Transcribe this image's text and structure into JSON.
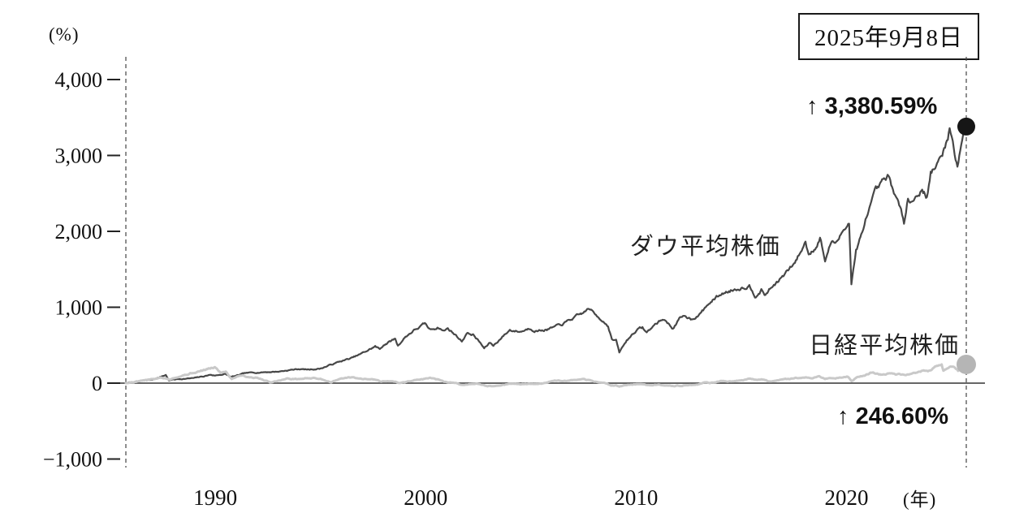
{
  "date_box": {
    "label": "2025年9月8日"
  },
  "chart_data": {
    "type": "line",
    "title": "",
    "ylabel": "(%)",
    "xlabel_unit": "(年)",
    "x_range": [
      1985.75,
      2025.69
    ],
    "y_range": [
      -1000,
      4000
    ],
    "grid": false,
    "legend_position": "inline-annotations",
    "y_ticks": [
      {
        "value": 4000,
        "label": "4,000"
      },
      {
        "value": 3000,
        "label": "3,000"
      },
      {
        "value": 2000,
        "label": "2,000"
      },
      {
        "value": 1000,
        "label": "1,000"
      },
      {
        "value": 0,
        "label": "0"
      },
      {
        "value": -1000,
        "label": "−1,000"
      }
    ],
    "x_ticks": [
      {
        "value": 1990,
        "label": "1990"
      },
      {
        "value": 2000,
        "label": "2000"
      },
      {
        "value": 2010,
        "label": "2010"
      },
      {
        "value": 2020,
        "label": "2020"
      }
    ],
    "zero_line": true,
    "dashed_vlines": [
      1985.75,
      2025.69
    ],
    "series": [
      {
        "id": "dow",
        "name": "ダウ平均株価",
        "color": "#474747",
        "dot_color": "#161616",
        "dot_radius": 11,
        "stroke_width": 2.2,
        "end_value_pct": 3380.59,
        "points": [
          [
            1985.75,
            0
          ],
          [
            1986,
            10
          ],
          [
            1986.3,
            22
          ],
          [
            1986.6,
            35
          ],
          [
            1987,
            45
          ],
          [
            1987.3,
            75
          ],
          [
            1987.65,
            108
          ],
          [
            1987.8,
            35
          ],
          [
            1988,
            48
          ],
          [
            1988.5,
            58
          ],
          [
            1989,
            66
          ],
          [
            1989.5,
            92
          ],
          [
            1989.78,
            111
          ],
          [
            1990,
            100
          ],
          [
            1990.45,
            122
          ],
          [
            1990.75,
            81
          ],
          [
            1991,
            95
          ],
          [
            1991.4,
            128
          ],
          [
            1992,
            142
          ],
          [
            1992.5,
            148
          ],
          [
            1993,
            153
          ],
          [
            1993.5,
            172
          ],
          [
            1994,
            187
          ],
          [
            1994.4,
            178
          ],
          [
            1995,
            193
          ],
          [
            1995.5,
            243
          ],
          [
            1996,
            291
          ],
          [
            1996.5,
            330
          ],
          [
            1997,
            393
          ],
          [
            1997.6,
            483
          ],
          [
            1997.82,
            445
          ],
          [
            1998,
            505
          ],
          [
            1998.55,
            585
          ],
          [
            1998.68,
            495
          ],
          [
            1999,
            602
          ],
          [
            1999.4,
            690
          ],
          [
            1999.96,
            780
          ],
          [
            2000.2,
            700
          ],
          [
            2000.6,
            740
          ],
          [
            2000.85,
            690
          ],
          [
            2001.05,
            720
          ],
          [
            2001.3,
            665
          ],
          [
            2001.72,
            555
          ],
          [
            2001.95,
            660
          ],
          [
            2002.25,
            640
          ],
          [
            2002.56,
            540
          ],
          [
            2002.78,
            457
          ],
          [
            2003.05,
            530
          ],
          [
            2003.22,
            495
          ],
          [
            2003.6,
            600
          ],
          [
            2004,
            700
          ],
          [
            2004.5,
            680
          ],
          [
            2004.95,
            725
          ],
          [
            2005.3,
            695
          ],
          [
            2005.8,
            710
          ],
          [
            2006.4,
            760
          ],
          [
            2007,
            853
          ],
          [
            2007.4,
            905
          ],
          [
            2007.77,
            984
          ],
          [
            2008.05,
            900
          ],
          [
            2008.4,
            835
          ],
          [
            2008.67,
            760
          ],
          [
            2008.85,
            580
          ],
          [
            2009.05,
            560
          ],
          [
            2009.2,
            401
          ],
          [
            2009.55,
            560
          ],
          [
            2010,
            698
          ],
          [
            2010.3,
            735
          ],
          [
            2010.5,
            665
          ],
          [
            2010.95,
            786
          ],
          [
            2011.3,
            845
          ],
          [
            2011.62,
            760
          ],
          [
            2011.75,
            725
          ],
          [
            2012.05,
            840
          ],
          [
            2012.35,
            880
          ],
          [
            2012.6,
            850
          ],
          [
            2013,
            905
          ],
          [
            2013.5,
            1060
          ],
          [
            2014,
            1168
          ],
          [
            2014.5,
            1225
          ],
          [
            2014.95,
            1263
          ],
          [
            2015.38,
            1290
          ],
          [
            2015.65,
            1165
          ],
          [
            2015.95,
            1233
          ],
          [
            2016.1,
            1160
          ],
          [
            2016.5,
            1280
          ],
          [
            2017,
            1412
          ],
          [
            2017.5,
            1560
          ],
          [
            2018.05,
            1855
          ],
          [
            2018.2,
            1700
          ],
          [
            2018.55,
            1810
          ],
          [
            2018.74,
            1925
          ],
          [
            2018.98,
            1620
          ],
          [
            2019.3,
            1880
          ],
          [
            2019.55,
            1840
          ],
          [
            2019.95,
            2083
          ],
          [
            2020.12,
            2130
          ],
          [
            2020.23,
            1322
          ],
          [
            2020.45,
            1750
          ],
          [
            2020.7,
            1930
          ],
          [
            2020.85,
            2060
          ],
          [
            2021,
            2241
          ],
          [
            2021.35,
            2480
          ],
          [
            2021.65,
            2590
          ],
          [
            2021.95,
            2695
          ],
          [
            2022.25,
            2520
          ],
          [
            2022.5,
            2330
          ],
          [
            2022.73,
            2098
          ],
          [
            2022.92,
            2480
          ],
          [
            2023.1,
            2400
          ],
          [
            2023.55,
            2560
          ],
          [
            2023.82,
            2470
          ],
          [
            2024,
            2783
          ],
          [
            2024.3,
            2870
          ],
          [
            2024.55,
            2990
          ],
          [
            2024.9,
            3345
          ],
          [
            2025.05,
            3170
          ],
          [
            2025.27,
            2860
          ],
          [
            2025.45,
            3180
          ],
          [
            2025.55,
            3320
          ],
          [
            2025.62,
            3420
          ],
          [
            2025.66,
            3300
          ],
          [
            2025.69,
            3380.59
          ]
        ]
      },
      {
        "id": "nikkei",
        "name": "日経平均株価",
        "color": "#c9c9c9",
        "dot_color": "#b5b5b5",
        "dot_radius": 12,
        "stroke_width": 3,
        "end_value_pct": 246.6,
        "points": [
          [
            1985.75,
            0
          ],
          [
            1986,
            6
          ],
          [
            1986.4,
            32
          ],
          [
            1987,
            49
          ],
          [
            1987.4,
            72
          ],
          [
            1987.8,
            52
          ],
          [
            1988,
            71
          ],
          [
            1988.5,
            108
          ],
          [
            1989,
            140
          ],
          [
            1989.5,
            172
          ],
          [
            1989.98,
            209
          ],
          [
            1990.25,
            140
          ],
          [
            1990.5,
            158
          ],
          [
            1990.78,
            60
          ],
          [
            1991,
            90
          ],
          [
            1991.25,
            108
          ],
          [
            1991.6,
            82
          ],
          [
            1992,
            70
          ],
          [
            1992.6,
            14
          ],
          [
            1993,
            34
          ],
          [
            1993.4,
            58
          ],
          [
            1994,
            54
          ],
          [
            1994.5,
            68
          ],
          [
            1995,
            57
          ],
          [
            1995.5,
            15
          ],
          [
            1996,
            58
          ],
          [
            1996.45,
            76
          ],
          [
            1997,
            54
          ],
          [
            1997.45,
            62
          ],
          [
            1997.9,
            22
          ],
          [
            1998.3,
            30
          ],
          [
            1998.75,
            3
          ],
          [
            1999,
            10
          ],
          [
            1999.5,
            42
          ],
          [
            2000.25,
            64
          ],
          [
            2000.6,
            38
          ],
          [
            2001,
            10
          ],
          [
            2001.5,
            -6
          ],
          [
            2001.74,
            -22
          ],
          [
            2002,
            -16
          ],
          [
            2002.4,
            -8
          ],
          [
            2002.85,
            -32
          ],
          [
            2003.3,
            -40
          ],
          [
            2003.7,
            -16
          ],
          [
            2004.1,
            -12
          ],
          [
            2004.6,
            -14
          ],
          [
            2005,
            -9
          ],
          [
            2005.5,
            -6
          ],
          [
            2006,
            28
          ],
          [
            2006.3,
            36
          ],
          [
            2006.55,
            22
          ],
          [
            2007,
            37
          ],
          [
            2007.5,
            45
          ],
          [
            2008,
            20
          ],
          [
            2008.5,
            3
          ],
          [
            2008.82,
            -35
          ],
          [
            2009.05,
            -30
          ],
          [
            2009.2,
            -44
          ],
          [
            2009.6,
            -22
          ],
          [
            2010,
            -16
          ],
          [
            2010.5,
            -26
          ],
          [
            2010.9,
            -19
          ],
          [
            2011.2,
            -25
          ],
          [
            2011.6,
            -28
          ],
          [
            2012,
            -33
          ],
          [
            2012.5,
            -31
          ],
          [
            2012.95,
            -17
          ],
          [
            2013.38,
            14
          ],
          [
            2013.5,
            3
          ],
          [
            2014,
            26
          ],
          [
            2014.5,
            22
          ],
          [
            2015,
            39
          ],
          [
            2015.45,
            62
          ],
          [
            2015.7,
            45
          ],
          [
            2015.95,
            51
          ],
          [
            2016.3,
            28
          ],
          [
            2016.55,
            32
          ],
          [
            2017,
            52
          ],
          [
            2017.5,
            61
          ],
          [
            2018.02,
            83
          ],
          [
            2018.25,
            68
          ],
          [
            2018.7,
            85
          ],
          [
            2018.98,
            57
          ],
          [
            2019.3,
            68
          ],
          [
            2019.7,
            76
          ],
          [
            2020.05,
            88
          ],
          [
            2020.24,
            32
          ],
          [
            2020.5,
            76
          ],
          [
            2020.8,
            92
          ],
          [
            2021,
            118
          ],
          [
            2021.12,
            135
          ],
          [
            2021.5,
            124
          ],
          [
            2021.72,
            112
          ],
          [
            2022,
            128
          ],
          [
            2022.3,
            114
          ],
          [
            2022.6,
            108
          ],
          [
            2023,
            107
          ],
          [
            2023.35,
            132
          ],
          [
            2023.6,
            162
          ],
          [
            2024,
            166
          ],
          [
            2024.2,
            212
          ],
          [
            2024.52,
            234
          ],
          [
            2024.6,
            150
          ],
          [
            2024.85,
            202
          ],
          [
            2025,
            217
          ],
          [
            2025.15,
            208
          ],
          [
            2025.3,
            168
          ],
          [
            2025.5,
            218
          ],
          [
            2025.62,
            238
          ],
          [
            2025.69,
            246.6
          ]
        ]
      }
    ],
    "annotations": [
      {
        "name": "dow-series-label",
        "kind": "series-label",
        "text": "ダウ平均株価",
        "x": 2013.3,
        "y": 1810
      },
      {
        "name": "nikkei-series-label",
        "kind": "series-label",
        "text": "日経平均株価",
        "x": 2021.8,
        "y": 505
      },
      {
        "name": "dow-return-label",
        "kind": "value-label",
        "text": "↑ 3,380.59%",
        "x": 2021.2,
        "y": 3660
      },
      {
        "name": "nikkei-return-label",
        "kind": "value-label",
        "text": "↑ 246.60%",
        "x": 2022.2,
        "y": -430
      }
    ]
  }
}
